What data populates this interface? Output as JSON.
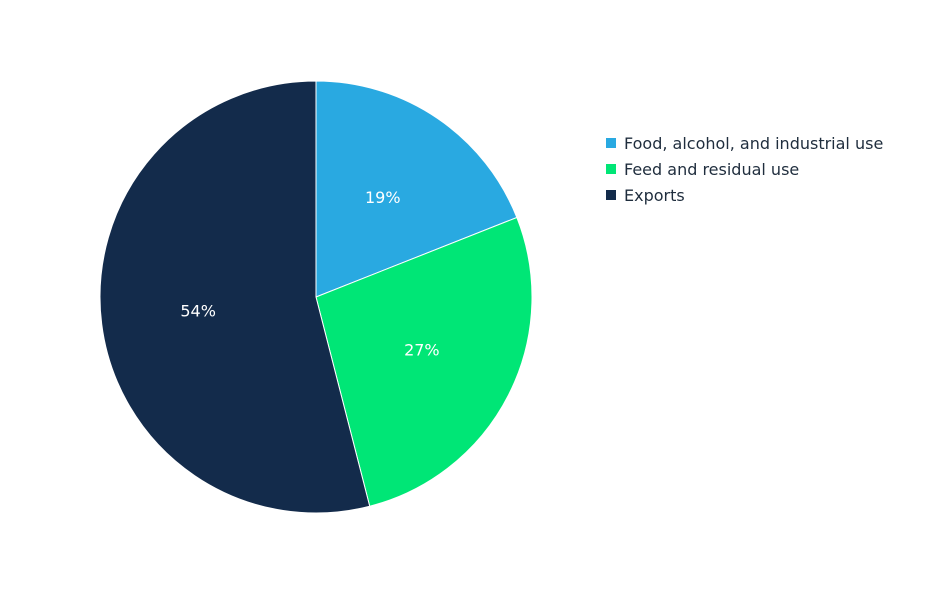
{
  "chart_data": {
    "type": "pie",
    "categories": [
      "Food, alcohol, and industrial use",
      "Feed and residual use",
      "Exports"
    ],
    "values": [
      19,
      27,
      54
    ],
    "labels": [
      "19%",
      "27%",
      "54%"
    ],
    "colors": [
      "#29a9e1",
      "#00e676",
      "#132b4b"
    ],
    "start_angle": "12 o'clock",
    "direction": "clockwise",
    "legend_position": "right"
  }
}
